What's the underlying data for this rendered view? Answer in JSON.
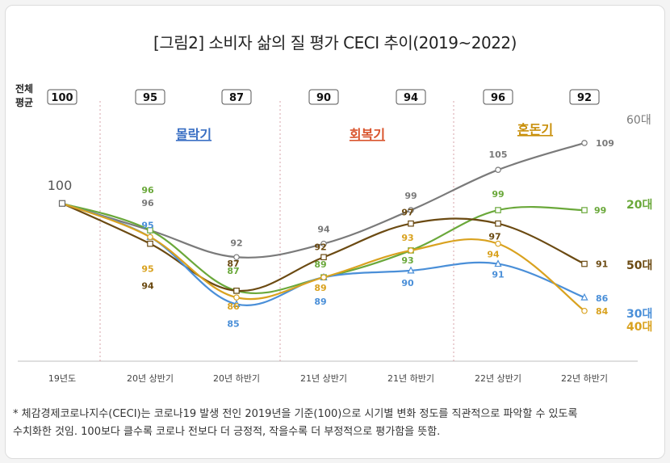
{
  "title": "[그림2] 소비자 삶의 질 평가 CECI 추이(2019~2022)",
  "avg_label_line1": "전체",
  "avg_label_line2": "평균",
  "footnote": {
    "line1": "* 체감경제코로나지수(CECI)는 코로나19 발생 전인 2019년을 기준(100)으로 시기별 변화 정도를 직관적으로 파악할 수 있도록",
    "line2": "수치화한 것임. 100보다 클수록 코로나 전보다 더 긍정적, 작을수록 더 부정적으로 평가함을 뜻함."
  },
  "chart_data": {
    "type": "line",
    "title": "[그림2] 소비자 삶의 질 평가 CECI 추이(2019~2022)",
    "categories": [
      "19년도",
      "20년 상반기",
      "20년 하반기",
      "21년 상반기",
      "21년 하반기",
      "22년 상반기",
      "22년 하반기"
    ],
    "averages": [
      "100",
      "95",
      "87",
      "90",
      "94",
      "96",
      "92"
    ],
    "baseline_label": "100",
    "phases": [
      {
        "label": "몰락기",
        "color": "#3a6fc4"
      },
      {
        "label": "회복기",
        "color": "#d9532b"
      },
      {
        "label": "혼돈기",
        "color": "#c9900c"
      }
    ],
    "series": [
      {
        "name": "60대",
        "color": "#7a7a7a",
        "values": [
          100,
          96,
          92,
          94,
          99,
          105,
          109
        ],
        "labels": [
          "",
          "96",
          "92",
          "94",
          "99",
          "105",
          "109"
        ],
        "marker": "circle"
      },
      {
        "name": "20대",
        "color": "#6aa83a",
        "values": [
          100,
          96,
          87,
          89,
          93,
          99,
          99
        ],
        "labels": [
          "",
          "96",
          "87",
          "89",
          "93",
          "99",
          "99"
        ],
        "marker": "square"
      },
      {
        "name": "50대",
        "color": "#6b4a12",
        "values": [
          100,
          94,
          87,
          92,
          97,
          97,
          91
        ],
        "labels": [
          "",
          "94",
          "87",
          "92",
          "97",
          "97",
          "91"
        ],
        "marker": "square"
      },
      {
        "name": "30대",
        "color": "#4a8fd8",
        "values": [
          100,
          95,
          85,
          89,
          90,
          91,
          86
        ],
        "labels": [
          "",
          "95",
          "85",
          "89",
          "90",
          "91",
          "86"
        ],
        "marker": "triangle"
      },
      {
        "name": "40대",
        "color": "#d9a21f",
        "values": [
          100,
          95,
          86,
          89,
          93,
          94,
          84
        ],
        "labels": [
          "",
          "95",
          "86",
          "89",
          "93",
          "94",
          "84"
        ],
        "marker": "circle"
      }
    ],
    "ylim": [
      80,
      112
    ],
    "xlabel": "",
    "ylabel": ""
  }
}
